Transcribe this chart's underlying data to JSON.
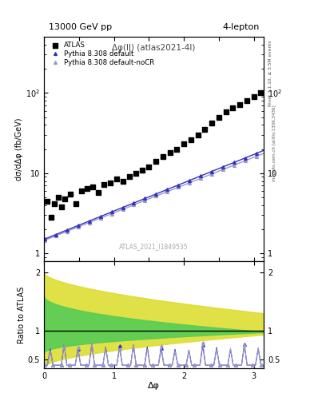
{
  "title_left": "13000 GeV pp",
  "title_right": "4-lepton",
  "main_label": "Δφ(ll) (atlas2021-4l)",
  "watermark": "ATLAS_2021_I1849535",
  "right_label_top": "Rivet 3.1.10, ≥ 3.5M events",
  "right_label_bottom": "mcplots.cern.ch [arXiv:1306.3436]",
  "ylabel_main": "dσ/dΔφ (fb/GeV)",
  "ylabel_ratio": "Ratio to ATLAS",
  "xlabel": "Δφ",
  "ylim_main": [
    0.8,
    500
  ],
  "ylim_ratio": [
    0.35,
    2.2
  ],
  "xlim": [
    0,
    3.14159
  ],
  "legend_entries": [
    "ATLAS",
    "Pythia 8.308 default",
    "Pythia 8.308 default-noCR"
  ],
  "atlas_color": "#000000",
  "pythia_default_color": "#3333bb",
  "pythia_nocr_color": "#9999cc",
  "band_green_color": "#55cc55",
  "band_yellow_color": "#dddd33",
  "background_color": "#ffffff"
}
